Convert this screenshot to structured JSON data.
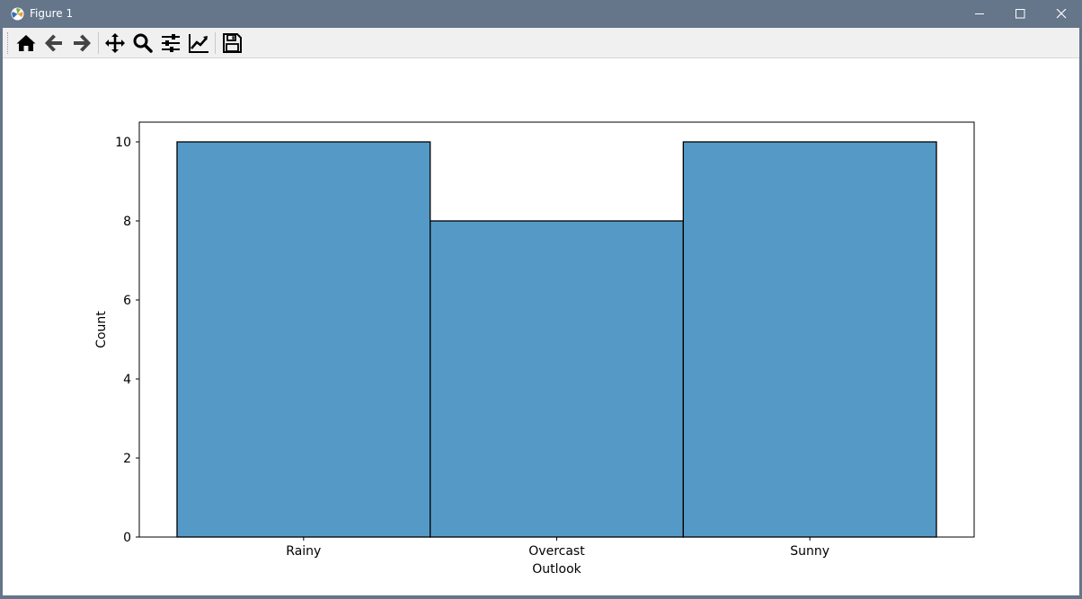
{
  "window": {
    "title": "Figure 1",
    "app_icon": "matplotlib-icon",
    "controls": [
      "minimize-icon",
      "maximize-icon",
      "close-icon"
    ]
  },
  "toolbar": {
    "buttons": [
      "home-icon",
      "back-arrow-icon",
      "forward-arrow-icon",
      "pan-move-icon",
      "zoom-magnifier-icon",
      "configure-subplots-icon",
      "edit-axis-icon",
      "save-icon"
    ]
  },
  "chart_data": {
    "type": "bar",
    "categories": [
      "Rainy",
      "Overcast",
      "Sunny"
    ],
    "values": [
      10,
      8,
      10
    ],
    "title": "",
    "xlabel": "Outlook",
    "ylabel": "Count",
    "ylim": [
      0,
      10.5
    ],
    "yticks": [
      0,
      2,
      4,
      6,
      8,
      10
    ],
    "grid": false,
    "colors": {
      "bar_fill": "#5599c7",
      "bar_edge": "#000000"
    }
  }
}
